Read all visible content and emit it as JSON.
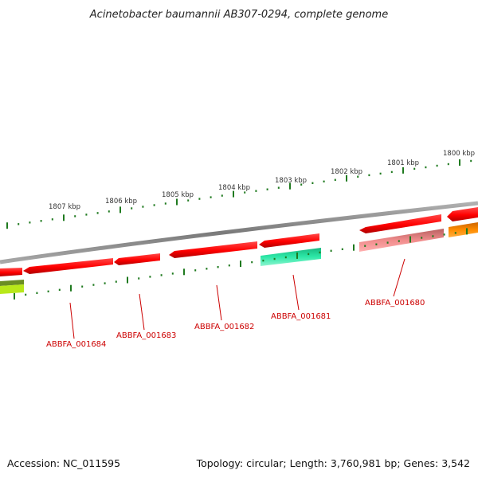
{
  "title": "Acinetobacter baumannii AB307-0294, complete genome",
  "footer": {
    "accession": "Accession: NC_011595",
    "summary": "Topology: circular; Length: 3,760,981 bp; Genes: 3,542"
  },
  "scale_labels": [
    "1807 kbp",
    "1806 kbp",
    "1805 kbp",
    "1804 kbp",
    "1803 kbp",
    "1802 kbp",
    "1801 kbp",
    "1800 kbp"
  ],
  "gene_labels": [
    "ABBFA_001684",
    "ABBFA_001683",
    "ABBFA_001682",
    "ABBFA_001681",
    "ABBFA_001680"
  ],
  "colors": {
    "backbone": "#8a8a8a",
    "tick": "#1f7a1f",
    "gene_forward": "#ff1a1a",
    "gene_reverse_pink": "#f08080",
    "gene_reverse_green": "#2de8a8",
    "gene_orange": "#ff8c00",
    "gene_olive": "#6b8e23",
    "gene_lime": "#b8e81a",
    "label_line": "#cc0000"
  }
}
